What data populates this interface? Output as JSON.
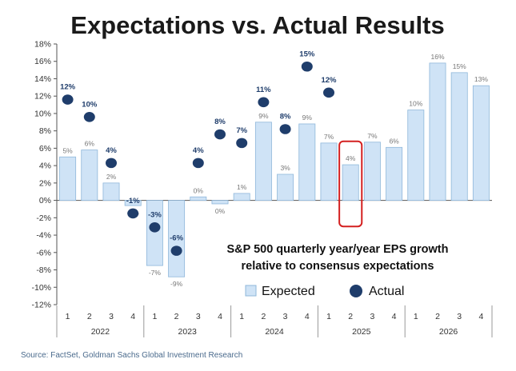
{
  "title": "Expectations vs. Actual Results",
  "annotation": [
    "S&P 500 quarterly year/year EPS growth",
    "relative to consensus expectations"
  ],
  "source": "Source: FactSet, Goldman Sachs Global Investment Research",
  "colors": {
    "expected_fill": "#cfe3f6",
    "expected_stroke": "#8fb7da",
    "actual": "#1f3d6b",
    "highlight": "#d42020",
    "axis": "#555555"
  },
  "chart_data": {
    "type": "bar",
    "categories": [
      "1",
      "2",
      "3",
      "4",
      "1",
      "2",
      "3",
      "4",
      "1",
      "2",
      "3",
      "4",
      "1",
      "2",
      "3",
      "4",
      "1",
      "2",
      "3",
      "4"
    ],
    "years": [
      "2022",
      "2023",
      "2024",
      "2025",
      "2026"
    ],
    "ylim": [
      -12,
      18
    ],
    "yticks": [
      18,
      16,
      14,
      12,
      10,
      8,
      6,
      4,
      2,
      0,
      -2,
      -4,
      -6,
      -8,
      -10,
      -12
    ],
    "ytick_labels": [
      "18%",
      "16%",
      "14%",
      "12%",
      "10%",
      "8%",
      "6%",
      "4%",
      "2%",
      "0%",
      "-2%",
      "-4%",
      "-6%",
      "-8%",
      "-10%",
      "-12%"
    ],
    "series": [
      {
        "name": "Expected",
        "values": [
          5.0,
          5.8,
          2.0,
          -0.6,
          -7.5,
          -8.8,
          0.4,
          -0.4,
          0.8,
          9.0,
          3.0,
          8.8,
          6.6,
          4.1,
          6.7,
          6.1,
          10.4,
          15.8,
          14.7,
          13.2
        ],
        "labels": [
          "5%",
          "6%",
          "2%",
          "-1%",
          "-7%",
          "-9%",
          "0%",
          "0%",
          "1%",
          "9%",
          "3%",
          "9%",
          "7%",
          "4%",
          "7%",
          "6%",
          "10%",
          "16%",
          "15%",
          "13%"
        ]
      },
      {
        "name": "Actual",
        "values": [
          11.6,
          9.6,
          4.3,
          -1.5,
          -3.1,
          -5.8,
          4.3,
          7.6,
          6.6,
          11.3,
          8.2,
          15.4,
          12.4,
          null,
          null,
          null,
          null,
          null,
          null,
          null
        ],
        "labels": [
          "12%",
          "10%",
          "4%",
          "-1%",
          "-3%",
          "-6%",
          "4%",
          "8%",
          "7%",
          "11%",
          "8%",
          "15%",
          "12%",
          "",
          "",
          "",
          "",
          "",
          "",
          ""
        ]
      }
    ],
    "highlight_index": 13,
    "legend": {
      "position": "bottom-right",
      "entries": [
        "Expected",
        "Actual"
      ]
    }
  }
}
